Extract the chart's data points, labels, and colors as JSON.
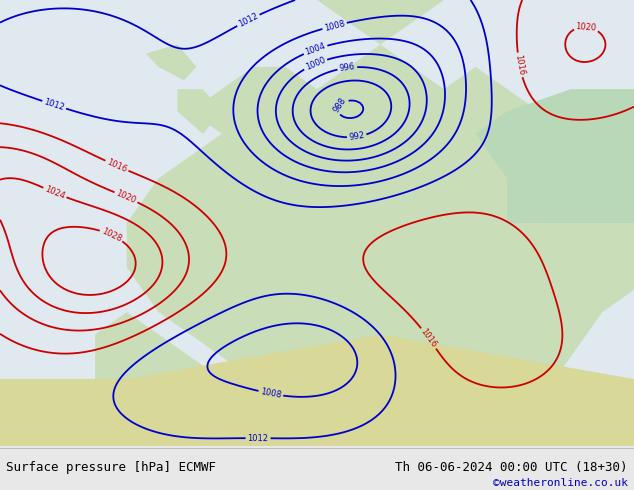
{
  "title_left": "Surface pressure [hPa] ECMWF",
  "title_right": "Th 06-06-2024 00:00 UTC (18+30)",
  "credit": "©weatheronline.co.uk",
  "credit_color": "#0000cc",
  "bg_color": "#e8e8e8",
  "map_bg_land": "#c8e6c8",
  "map_bg_sea": "#ffffff",
  "bottom_bar_color": "#f0f0f0",
  "bottom_text_color": "#000000",
  "isobar_low_color": "#0000cc",
  "isobar_high_color": "#cc0000",
  "isobar_main_color": "#000000",
  "isobar_label_color_low": "#0000cc",
  "isobar_label_color_high": "#cc0000",
  "figsize": [
    6.34,
    4.9
  ],
  "dpi": 100
}
